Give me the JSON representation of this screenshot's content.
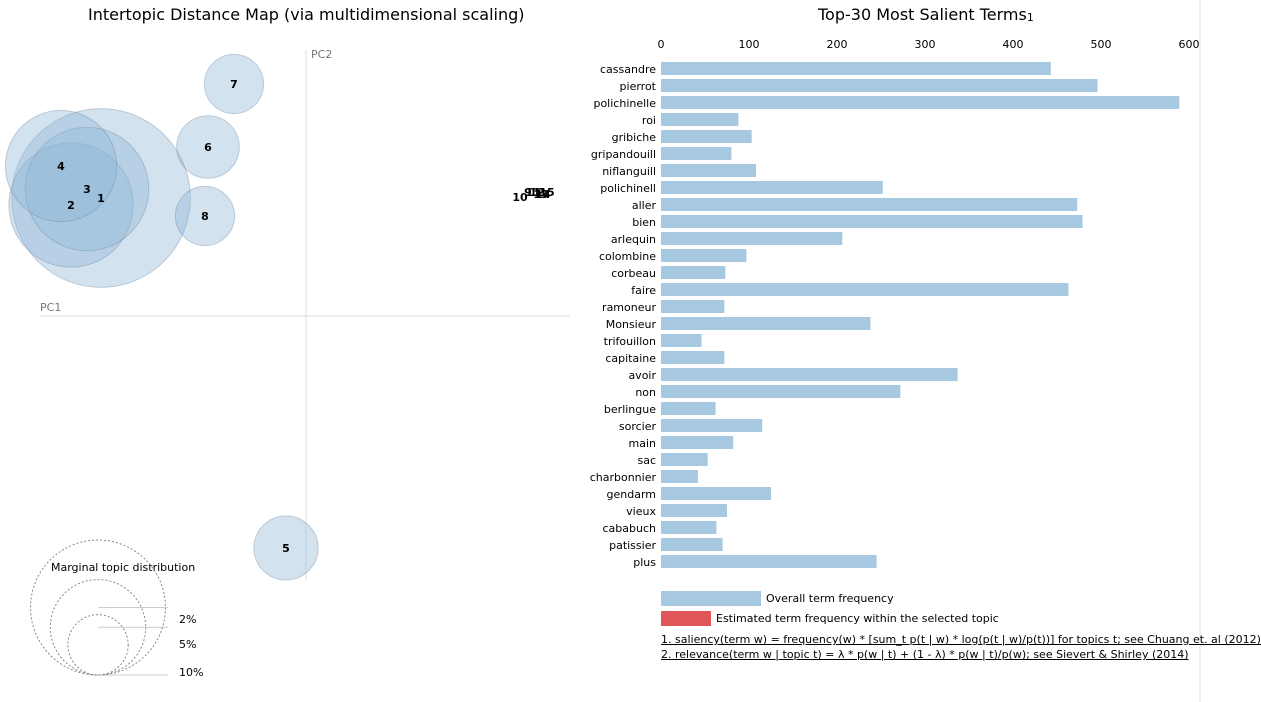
{
  "left_title": "Intertopic Distance Map (via multidimensional scaling)",
  "right_title": "Top-30 Most Salient Terms",
  "right_title_sup": "1",
  "chart_data": [
    {
      "type": "scatter",
      "title": "Intertopic Distance Map (via multidimensional scaling)",
      "xlabel": "PC1",
      "ylabel": "PC2",
      "grid": false,
      "size_legend": {
        "title": "Marginal topic distribution",
        "levels": [
          "2%",
          "5%",
          "10%"
        ]
      },
      "topics": [
        {
          "label": "1",
          "x": -0.205,
          "y": 0.118,
          "share": 0.155
        },
        {
          "label": "2",
          "x": -0.235,
          "y": 0.111,
          "share": 0.075
        },
        {
          "label": "3",
          "x": -0.219,
          "y": 0.127,
          "share": 0.074
        },
        {
          "label": "4",
          "x": -0.245,
          "y": 0.15,
          "share": 0.06
        },
        {
          "label": "5",
          "x": -0.02,
          "y": -0.232,
          "share": 0.02
        },
        {
          "label": "6",
          "x": -0.098,
          "y": 0.169,
          "share": 0.019
        },
        {
          "label": "7",
          "x": -0.072,
          "y": 0.232,
          "share": 0.017
        },
        {
          "label": "8",
          "x": -0.101,
          "y": 0.1,
          "share": 0.017
        }
      ],
      "cluster_labels": [
        {
          "label": "10",
          "x": 0.214,
          "y": 0.119
        },
        {
          "label": "9",
          "x": 0.222,
          "y": 0.124
        },
        {
          "label": "11",
          "x": 0.227,
          "y": 0.124
        },
        {
          "label": "12",
          "x": 0.231,
          "y": 0.124
        },
        {
          "label": "13",
          "x": 0.235,
          "y": 0.122
        },
        {
          "label": "14",
          "x": 0.237,
          "y": 0.122
        },
        {
          "label": "15",
          "x": 0.241,
          "y": 0.124
        }
      ]
    },
    {
      "type": "bar",
      "orientation": "horizontal",
      "title": "Top-30 Most Salient Terms",
      "xlim": [
        0,
        600
      ],
      "xticks": [
        "0",
        "100",
        "200",
        "300",
        "400",
        "500",
        "600"
      ],
      "color": "#a6c8e0",
      "categories": [
        "cassandre",
        "pierrot",
        "polichinelle",
        "roi",
        "gribiche",
        "gripandouill",
        "niflanguill",
        "polichinell",
        "aller",
        "bien",
        "arlequin",
        "colombine",
        "corbeau",
        "faire",
        "ramoneur",
        "Monsieur",
        "trifouillon",
        "capitaine",
        "avoir",
        "non",
        "berlingue",
        "sorcier",
        "main",
        "sac",
        "charbonnier",
        "gendarm",
        "vieux",
        "cababuch",
        "patissier",
        "plus"
      ],
      "values": [
        443,
        496,
        589,
        88,
        103,
        80,
        108,
        252,
        473,
        479,
        206,
        97,
        73,
        463,
        72,
        238,
        46,
        72,
        337,
        272,
        62,
        115,
        82,
        53,
        42,
        125,
        75,
        63,
        70,
        245
      ]
    }
  ],
  "bar_legend": {
    "overall": "Overall term frequency",
    "estimated": "Estimated term frequency within the selected topic",
    "overall_color": "#a6c8e0",
    "estimated_color": "#e15759"
  },
  "notes": {
    "note1": "1. saliency(term w) = frequency(w) * [sum_t p(t | w) * log(p(t | w)/p(t))] for topics t; see Chuang et. al (2012)",
    "note2": "2. relevance(term w | topic t) = λ * p(w | t) + (1 - λ) * p(w | t)/p(w); see Sievert & Shirley (2014)"
  },
  "colors": {
    "topic_fill": "#8fb7d8",
    "topic_stroke": "#6f7f8f",
    "axis": "#dddddd",
    "axis_label": "#777777"
  }
}
